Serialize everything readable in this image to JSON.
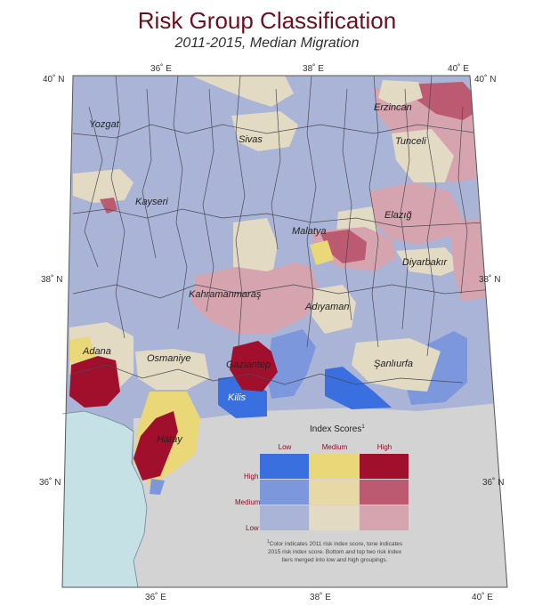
{
  "title": "Risk Group Classification",
  "subtitle": "2011-2015, Median Migration",
  "graticule": {
    "top_longitudes": [
      "36˚ E",
      "38˚ E",
      "40˚ E"
    ],
    "bottom_longitudes": [
      "36˚ E",
      "38˚ E",
      "40˚ E"
    ],
    "left_latitudes": [
      "40˚ N",
      "38˚ N",
      "36˚ N"
    ],
    "right_latitudes": [
      "40˚ N",
      "38˚ N",
      "36˚ N"
    ]
  },
  "cities": {
    "yozgat": "Yozgat",
    "sivas": "Sivas",
    "erzincan": "Erzincan",
    "tunceli": "Tunceli",
    "kayseri": "Kayseri",
    "elazig": "Elazığ",
    "malatya": "Malatya",
    "diyarbakir": "Diyarbakır",
    "kahramanmaras": "Kahramanmaraş",
    "adiyaman": "Adıyaman",
    "adana": "Adana",
    "osmaniye": "Osmaniye",
    "gaziantep": "Gaziantep",
    "sanliurfa": "Şanlıurfa",
    "kilis": "Kilis",
    "hatay": "Hatay"
  },
  "legend": {
    "title": "Index Scores",
    "title_sup": "1",
    "col_labels": [
      "Low",
      "Medium",
      "High"
    ],
    "row_labels": [
      "High",
      "Medium",
      "Low"
    ],
    "colors": [
      [
        "#3a6fe0",
        "#ead777",
        "#a0102c"
      ],
      [
        "#7d97dd",
        "#e7d8a6",
        "#bb5a70"
      ],
      [
        "#aab4d6",
        "#e3dac3",
        "#d6a4ae"
      ]
    ],
    "footnote_sup": "1",
    "footnote_lines": [
      "Color indicates 2011 risk index score, tone indicates",
      "2015 risk index score. Bottom and top two risk index",
      "tiers merged into low and high groupings."
    ]
  },
  "colors": {
    "title": "#6e0f1f",
    "sea": "#c5e1e6",
    "outside": "#d3d3d3",
    "low_low": "#aab4d6",
    "low_medium": "#7d97dd",
    "low_high": "#3a6fe0",
    "medium_low": "#e3dac3",
    "high_low": "#d6a4ae",
    "high_medium": "#bb5a70",
    "high_high": "#a0102c"
  }
}
